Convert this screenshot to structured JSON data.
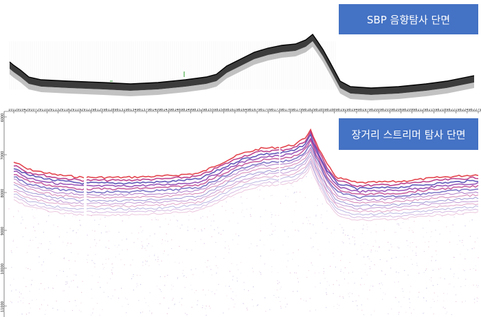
{
  "sbp": {
    "title": "SBP 음향탐사 단면",
    "badge_color": "#4472C4",
    "profile_color": "#1a1a1a"
  },
  "streamer": {
    "title": "장거리 스트리머 탐사 단면",
    "badge_color": "#4472C4",
    "trace_ticks": [
      "10129",
      "10429",
      "10729",
      "11029",
      "11329",
      "11629",
      "11929",
      "12298",
      "12598",
      "12898",
      "13198",
      "13498",
      "13798",
      "14098",
      "14398",
      "14698",
      "14998",
      "15298",
      "15598",
      "15898",
      "16198",
      "16498",
      "16798",
      "17098",
      "17398",
      "17698",
      "17998",
      "18298",
      "18598",
      "18898",
      "19198",
      "19498",
      "19798",
      "20098",
      "20398",
      "20698",
      "20998",
      "21298",
      "21598",
      "21898",
      "22198",
      "22498",
      "22790"
    ],
    "depth_ticks": [
      "6000",
      "7000",
      "8000",
      "9000",
      "10000",
      "11000"
    ],
    "reflector_colors": [
      "#7a1fa0",
      "#b0207a",
      "#3a2ea8",
      "#e0303a"
    ]
  }
}
